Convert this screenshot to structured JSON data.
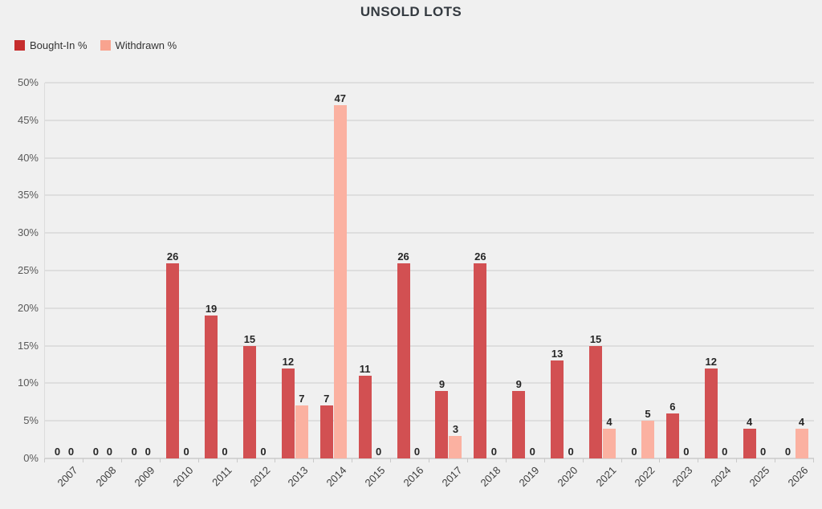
{
  "title": "UNSOLD LOTS",
  "colors": {
    "background": "#f0f0f0",
    "grid": "#dedede",
    "bought_in_bar": "#d25052",
    "bought_in_legend": "#c62d2d",
    "withdrawn_bar": "#fbb1a1",
    "withdrawn_legend": "#f9a38f"
  },
  "chart_data": {
    "type": "bar",
    "title": "UNSOLD LOTS",
    "xlabel": "",
    "ylabel": "",
    "ylim": [
      0,
      50
    ],
    "y_tick_step": 5,
    "y_ticks": [
      "0%",
      "5%",
      "10%",
      "15%",
      "20%",
      "25%",
      "30%",
      "35%",
      "40%",
      "45%",
      "50%"
    ],
    "grid": true,
    "legend_position": "top-left",
    "value_labels": true,
    "categories": [
      "2007",
      "2008",
      "2009",
      "2010",
      "2011",
      "2012",
      "2013",
      "2014",
      "2015",
      "2016",
      "2017",
      "2018",
      "2019",
      "2020",
      "2021",
      "2022",
      "2023",
      "2024",
      "2025",
      "2026"
    ],
    "series": [
      {
        "name": "Bought-In %",
        "color": "#d25052",
        "legend_color": "#c62d2d",
        "values": [
          0,
          0,
          0,
          26,
          19,
          15,
          12,
          7,
          11,
          26,
          9,
          26,
          9,
          13,
          15,
          0,
          6,
          12,
          4,
          0
        ]
      },
      {
        "name": "Withdrawn %",
        "color": "#fbb1a1",
        "legend_color": "#f9a38f",
        "values": [
          0,
          0,
          0,
          0,
          0,
          0,
          7,
          47,
          0,
          0,
          3,
          0,
          0,
          0,
          4,
          5,
          0,
          0,
          0,
          4
        ]
      }
    ]
  }
}
